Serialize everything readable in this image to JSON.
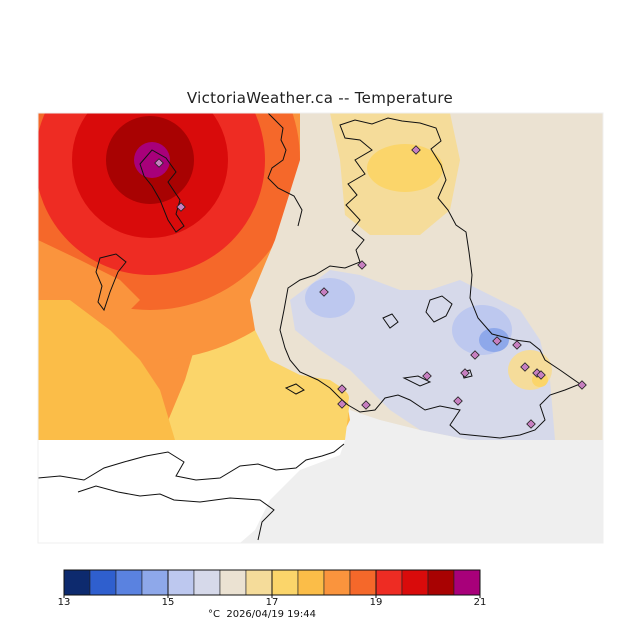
{
  "title": "VictoriaWeather.ca -- Temperature",
  "colors": {
    "frame_bg": "#efefef",
    "sea_white": "#ffffff",
    "coast": "#111111",
    "station_marker": "#c77fc0",
    "shades": [
      "#0d2a6e",
      "#2f5fce",
      "#5a82e0",
      "#8ea8ea",
      "#bdc8ef",
      "#d6d9ea",
      "#ebe2d2",
      "#f5dc9a",
      "#fbd56a",
      "#fbbd48",
      "#fa943d",
      "#f5682a",
      "#ee2c23",
      "#d90b0b",
      "#a80202",
      "#a8007a"
    ]
  },
  "legend": {
    "unit": "°C",
    "min": 13,
    "max": 21,
    "step": 0.5,
    "tick_labels": [
      "13",
      "15",
      "17",
      "19",
      "21"
    ]
  },
  "timestamp": "2026/04/19 19:44",
  "footer": "°C  2026/04/19 19:44",
  "icons": {
    "station": "diamond-station-icon"
  }
}
